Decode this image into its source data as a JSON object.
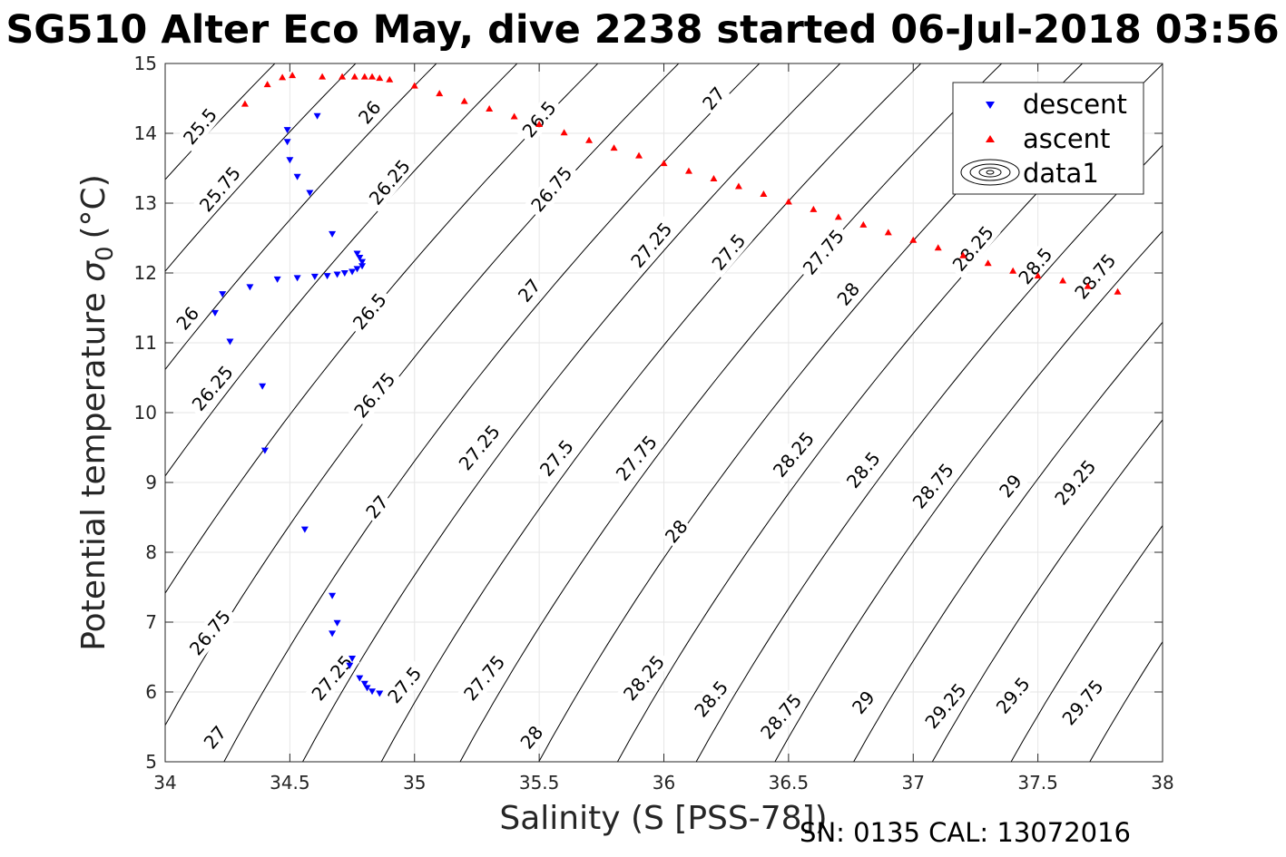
{
  "title": "SG510 Alter Eco May, dive 2238 started 06-Jul-2018 03:56",
  "footer": "SN: 0135  CAL: 13072016",
  "colors": {
    "descent": "#0000ff",
    "ascent": "#ff0000",
    "contour": "#000000",
    "grid": "#e6e6e6"
  },
  "chart_data": {
    "type": "scatter",
    "xlabel": "Salinity (S [PSS-78])",
    "ylabel_main": "Potential temperature",
    "ylabel_sigma": "σ",
    "ylabel_sub": "0",
    "ylabel_unit": "(°C)",
    "xlim": [
      34,
      38
    ],
    "ylim": [
      5,
      15
    ],
    "grid": true,
    "x_ticks": [
      "34",
      "34.5",
      "35",
      "35.5",
      "36",
      "36.5",
      "37",
      "37.5",
      "38"
    ],
    "y_ticks": [
      "5",
      "6",
      "7",
      "8",
      "9",
      "10",
      "11",
      "12",
      "13",
      "14",
      "15"
    ],
    "legend_position": "top-right",
    "legend": [
      "descent",
      "ascent",
      "data1"
    ],
    "series": [
      {
        "name": "descent",
        "marker": "triangle-down",
        "points": [
          [
            34.49,
            14.05
          ],
          [
            34.61,
            14.25
          ],
          [
            34.49,
            13.88
          ],
          [
            34.5,
            13.62
          ],
          [
            34.53,
            13.38
          ],
          [
            34.58,
            13.15
          ],
          [
            34.67,
            12.56
          ],
          [
            34.77,
            12.28
          ],
          [
            34.78,
            12.22
          ],
          [
            34.79,
            12.16
          ],
          [
            34.79,
            12.1
          ],
          [
            34.77,
            12.06
          ],
          [
            34.75,
            12.02
          ],
          [
            34.72,
            12.0
          ],
          [
            34.69,
            11.98
          ],
          [
            34.65,
            11.96
          ],
          [
            34.6,
            11.95
          ],
          [
            34.53,
            11.93
          ],
          [
            34.45,
            11.91
          ],
          [
            34.34,
            11.8
          ],
          [
            34.23,
            11.7
          ],
          [
            34.2,
            11.43
          ],
          [
            34.26,
            11.02
          ],
          [
            34.39,
            10.38
          ],
          [
            34.4,
            9.46
          ],
          [
            34.56,
            8.33
          ],
          [
            34.67,
            7.38
          ],
          [
            34.69,
            6.99
          ],
          [
            34.67,
            6.84
          ],
          [
            34.75,
            6.48
          ],
          [
            34.74,
            6.38
          ],
          [
            34.78,
            6.2
          ],
          [
            34.8,
            6.12
          ],
          [
            34.81,
            6.06
          ],
          [
            34.83,
            6.01
          ],
          [
            34.86,
            5.98
          ]
        ]
      },
      {
        "name": "ascent",
        "marker": "triangle-up",
        "points": [
          [
            34.32,
            14.42
          ],
          [
            34.41,
            14.7
          ],
          [
            34.47,
            14.8
          ],
          [
            34.51,
            14.83
          ],
          [
            34.63,
            14.81
          ],
          [
            34.71,
            14.81
          ],
          [
            34.76,
            14.81
          ],
          [
            34.8,
            14.81
          ],
          [
            34.83,
            14.81
          ],
          [
            34.86,
            14.79
          ],
          [
            34.9,
            14.77
          ],
          [
            35.0,
            14.68
          ],
          [
            35.1,
            14.57
          ],
          [
            35.2,
            14.46
          ],
          [
            35.3,
            14.35
          ],
          [
            35.4,
            14.24
          ],
          [
            35.5,
            14.13
          ],
          [
            35.6,
            14.01
          ],
          [
            35.7,
            13.9
          ],
          [
            35.8,
            13.79
          ],
          [
            35.9,
            13.68
          ],
          [
            36.0,
            13.57
          ],
          [
            36.1,
            13.46
          ],
          [
            36.2,
            13.35
          ],
          [
            36.3,
            13.24
          ],
          [
            36.4,
            13.13
          ],
          [
            36.5,
            13.02
          ],
          [
            36.6,
            12.91
          ],
          [
            36.7,
            12.8
          ],
          [
            36.8,
            12.69
          ],
          [
            36.9,
            12.58
          ],
          [
            37.0,
            12.47
          ],
          [
            37.1,
            12.36
          ],
          [
            37.2,
            12.25
          ],
          [
            37.3,
            12.14
          ],
          [
            37.4,
            12.03
          ],
          [
            37.5,
            11.96
          ],
          [
            37.6,
            11.89
          ],
          [
            37.7,
            11.81
          ],
          [
            37.82,
            11.73
          ]
        ]
      }
    ],
    "contours": {
      "name": "data1",
      "levels": [
        25.5,
        25.75,
        26,
        26.25,
        26.5,
        26.75,
        27,
        27.25,
        27.5,
        27.75,
        28,
        28.25,
        28.5,
        28.75,
        29,
        29.25,
        29.5,
        29.75
      ]
    },
    "contour_labels": [
      {
        "text": "25.5",
        "x": 34.14,
        "y": 14.1
      },
      {
        "text": "25.75",
        "x": 34.22,
        "y": 13.2
      },
      {
        "text": "26",
        "x": 34.82,
        "y": 14.3
      },
      {
        "text": "26.25",
        "x": 34.9,
        "y": 13.3
      },
      {
        "text": "26.5",
        "x": 35.5,
        "y": 14.2
      },
      {
        "text": "26.75",
        "x": 35.55,
        "y": 13.2
      },
      {
        "text": "27",
        "x": 36.2,
        "y": 14.5
      },
      {
        "text": "27.25",
        "x": 35.95,
        "y": 12.4
      },
      {
        "text": "27.5",
        "x": 36.26,
        "y": 12.3
      },
      {
        "text": "27.75",
        "x": 36.64,
        "y": 12.3
      },
      {
        "text": "28",
        "x": 36.74,
        "y": 11.7
      },
      {
        "text": "28.25",
        "x": 37.24,
        "y": 12.35
      },
      {
        "text": "28.5",
        "x": 37.49,
        "y": 12.1
      },
      {
        "text": "28.75",
        "x": 37.73,
        "y": 11.95
      },
      {
        "text": "26",
        "x": 34.09,
        "y": 11.35
      },
      {
        "text": "26.25",
        "x": 34.19,
        "y": 10.35
      },
      {
        "text": "26.5",
        "x": 34.82,
        "y": 11.45
      },
      {
        "text": "27",
        "x": 35.46,
        "y": 11.75
      },
      {
        "text": "26.75",
        "x": 34.84,
        "y": 10.25
      },
      {
        "text": "27.25",
        "x": 35.26,
        "y": 9.5
      },
      {
        "text": "27.5",
        "x": 35.57,
        "y": 9.35
      },
      {
        "text": "27.75",
        "x": 35.89,
        "y": 9.35
      },
      {
        "text": "28.25",
        "x": 36.52,
        "y": 9.4
      },
      {
        "text": "28.5",
        "x": 36.8,
        "y": 9.18
      },
      {
        "text": "28.75",
        "x": 37.08,
        "y": 8.95
      },
      {
        "text": "29",
        "x": 37.39,
        "y": 8.95
      },
      {
        "text": "29.25",
        "x": 37.65,
        "y": 9.0
      },
      {
        "text": "27",
        "x": 34.85,
        "y": 8.65
      },
      {
        "text": "28",
        "x": 36.05,
        "y": 8.3
      },
      {
        "text": "26.75",
        "x": 34.18,
        "y": 6.85
      },
      {
        "text": "27.25",
        "x": 34.67,
        "y": 6.2
      },
      {
        "text": "27.5",
        "x": 34.96,
        "y": 6.1
      },
      {
        "text": "27.75",
        "x": 35.28,
        "y": 6.2
      },
      {
        "text": "28.25",
        "x": 35.92,
        "y": 6.2
      },
      {
        "text": "28.5",
        "x": 36.19,
        "y": 5.9
      },
      {
        "text": "28.75",
        "x": 36.47,
        "y": 5.65
      },
      {
        "text": "29",
        "x": 36.8,
        "y": 5.85
      },
      {
        "text": "29.25",
        "x": 37.13,
        "y": 5.8
      },
      {
        "text": "29.5",
        "x": 37.4,
        "y": 5.95
      },
      {
        "text": "29.75",
        "x": 37.68,
        "y": 5.85
      },
      {
        "text": "27",
        "x": 34.2,
        "y": 5.35
      },
      {
        "text": "28",
        "x": 35.47,
        "y": 5.35
      }
    ]
  }
}
